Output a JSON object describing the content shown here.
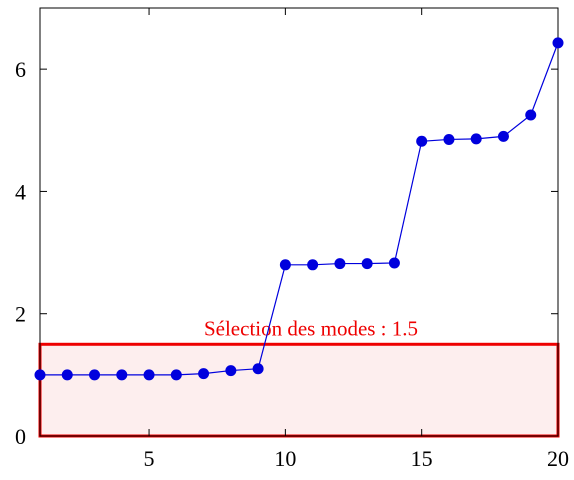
{
  "chart_data": {
    "type": "line",
    "title": "",
    "xlabel": "",
    "ylabel": "",
    "xlim": [
      1,
      20
    ],
    "ylim": [
      0,
      7
    ],
    "xticks": [
      5,
      10,
      15,
      20
    ],
    "yticks": [
      0,
      2,
      4,
      6
    ],
    "xtick_labels": [
      "5",
      "10",
      "15",
      "20"
    ],
    "ytick_labels": [
      "0",
      "2",
      "4",
      "6"
    ],
    "grid": false,
    "legend": "none",
    "series": [
      {
        "color": "#0000dd",
        "marker": "circle",
        "x": [
          1,
          2,
          3,
          4,
          5,
          6,
          7,
          8,
          9,
          10,
          11,
          12,
          13,
          14,
          15,
          16,
          17,
          18,
          19,
          20
        ],
        "y": [
          1.0,
          1.0,
          1.0,
          1.0,
          1.0,
          1.0,
          1.02,
          1.07,
          1.1,
          2.8,
          2.8,
          2.82,
          2.82,
          2.83,
          4.82,
          4.85,
          4.86,
          4.9,
          5.25,
          6.43
        ]
      }
    ],
    "annotations": [
      {
        "text": "Sélection des modes : 1.5",
        "color": "#ee0000",
        "fill": "#fdeeee",
        "x_range": [
          1,
          20
        ],
        "y_range": [
          0,
          1.5
        ]
      }
    ]
  }
}
